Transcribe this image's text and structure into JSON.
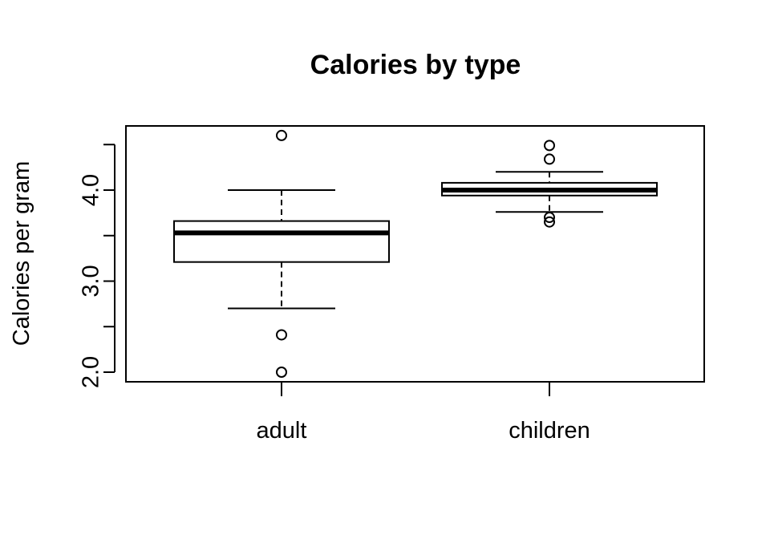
{
  "chart_data": {
    "type": "boxplot",
    "title": "Calories by type",
    "xlabel": "",
    "ylabel": "Calories per gram",
    "categories": [
      "adult",
      "children"
    ],
    "ylim": [
      1.9,
      4.7
    ],
    "y_ticks": [
      2.0,
      2.5,
      3.0,
      3.5,
      4.0,
      4.5
    ],
    "y_tick_labels": [
      "2.0",
      "",
      "3.0",
      "",
      "4.0",
      ""
    ],
    "boxes": [
      {
        "category": "adult",
        "whisker_low": 2.7,
        "q1": 3.21,
        "median": 3.53,
        "q3": 3.66,
        "whisker_high": 4.0,
        "outliers": [
          4.6,
          2.41,
          2.0
        ]
      },
      {
        "category": "children",
        "whisker_low": 3.76,
        "q1": 3.94,
        "median": 4.0,
        "q3": 4.08,
        "whisker_high": 4.2,
        "outliers": [
          4.49,
          4.34,
          3.7,
          3.65
        ]
      }
    ],
    "grid": false,
    "legend": "none",
    "colors": {
      "box_fill": "#ffffff",
      "stroke": "#000000"
    }
  }
}
